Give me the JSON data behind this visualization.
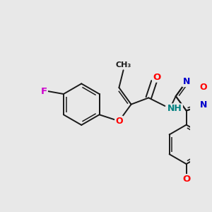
{
  "bg_color": "#e8e8e8",
  "bond_color": "#1a1a1a",
  "atom_colors": {
    "O": "#ff0000",
    "N": "#0000cc",
    "F": "#cc00cc",
    "H": "#008080",
    "C": "#1a1a1a"
  },
  "figsize": [
    3.0,
    3.0
  ],
  "dpi": 100
}
